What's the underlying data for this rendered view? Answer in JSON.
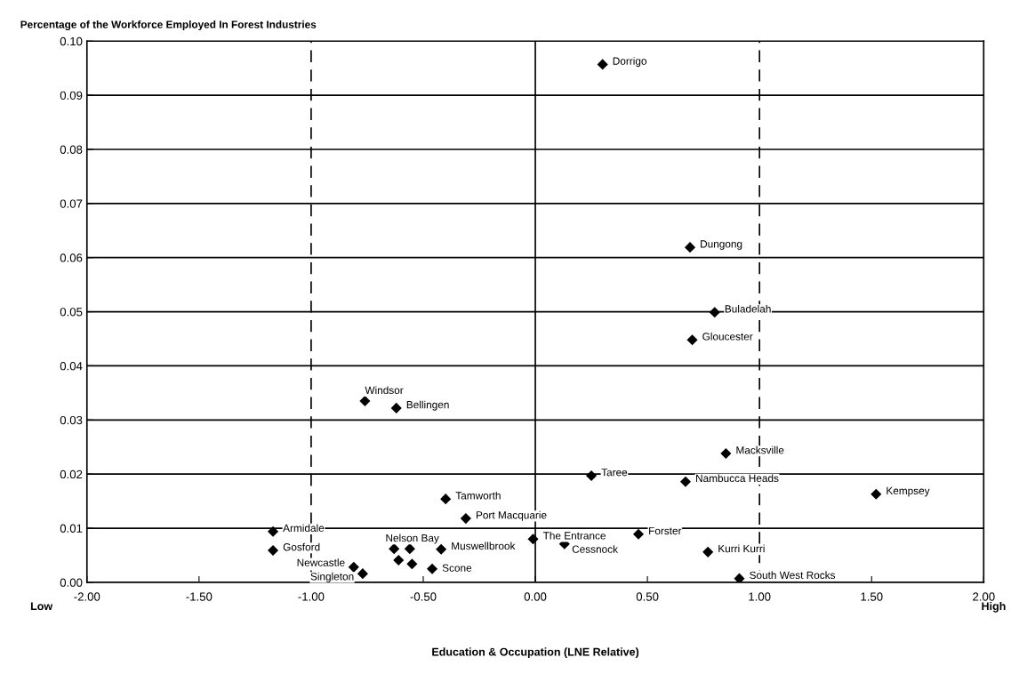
{
  "chart_data": {
    "type": "scatter",
    "title": "Percentage of the Workforce Employed In Forest Industries",
    "xlabel": "Education & Occupation (LNE Relative)",
    "x": [
      0.3,
      0.69,
      0.8,
      0.7,
      -0.76,
      -0.62,
      0.85,
      0.25,
      0.67,
      1.52,
      -0.4,
      -0.31,
      -1.17,
      -1.17,
      -0.63,
      -0.56,
      -0.61,
      -0.55,
      -0.42,
      -0.46,
      -0.81,
      -0.77,
      -0.01,
      0.13,
      0.46,
      0.77,
      0.91
    ],
    "values": [
      0.0957,
      0.0619,
      0.0499,
      0.0448,
      0.0335,
      0.0322,
      0.0238,
      0.0197,
      0.0186,
      0.0163,
      0.0154,
      0.0118,
      0.0094,
      0.0059,
      0.0062,
      0.0062,
      0.0041,
      0.0034,
      0.0061,
      0.0025,
      0.0028,
      0.0016,
      0.008,
      0.0071,
      0.0089,
      0.0056,
      0.0007
    ],
    "color": "#000000",
    "marker": "diamond",
    "xlim": [
      -2,
      2
    ],
    "xticks": [
      {
        "value": -2,
        "label": "-2.00"
      },
      {
        "value": -1.5,
        "label": "-1.50"
      },
      {
        "value": -1,
        "label": "-1.00"
      },
      {
        "value": -0.5,
        "label": "-0.50"
      },
      {
        "value": 0,
        "label": "0.00"
      },
      {
        "value": 0.5,
        "label": "0.50"
      },
      {
        "value": 1,
        "label": "1.00"
      },
      {
        "value": 1.5,
        "label": "1.50"
      },
      {
        "value": 2,
        "label": "2.00"
      }
    ],
    "ylim": [
      0,
      0.1
    ],
    "yticks": [
      {
        "value": 0,
        "label": "0.00"
      },
      {
        "value": 0.01,
        "label": "0.01"
      },
      {
        "value": 0.02,
        "label": "0.02"
      },
      {
        "value": 0.03,
        "label": "0.03"
      },
      {
        "value": 0.04,
        "label": "0.04"
      },
      {
        "value": 0.05,
        "label": "0.05"
      },
      {
        "value": 0.06,
        "label": "0.06"
      },
      {
        "value": 0.07,
        "label": "0.07"
      },
      {
        "value": 0.08,
        "label": "0.08"
      },
      {
        "value": 0.09,
        "label": "0.09"
      },
      {
        "value": 0.1,
        "label": "0.10"
      }
    ],
    "grid": "y",
    "ref_lines": [
      {
        "axis": "x",
        "value": -1,
        "color": "#000000",
        "line_style": "dashed"
      },
      {
        "axis": "x",
        "value": 0,
        "color": "#000000",
        "line_style": "solid"
      },
      {
        "axis": "x",
        "value": 1,
        "color": "#000000",
        "line_style": "dashed"
      }
    ],
    "annotations": [
      {
        "text": "Dorrigo",
        "x": 0.3,
        "y": 0.0957
      },
      {
        "text": "Dungong",
        "x": 0.69,
        "y": 0.0619
      },
      {
        "text": "Buladelah",
        "x": 0.8,
        "y": 0.0499
      },
      {
        "text": "Gloucester",
        "x": 0.7,
        "y": 0.0448
      },
      {
        "text": "Windsor",
        "x": -0.76,
        "y": 0.0335
      },
      {
        "text": "Bellingen",
        "x": -0.62,
        "y": 0.0322
      },
      {
        "text": "Macksville",
        "x": 0.85,
        "y": 0.0238
      },
      {
        "text": "Taree",
        "x": 0.25,
        "y": 0.0197
      },
      {
        "text": "Nambucca Heads",
        "x": 0.67,
        "y": 0.0186
      },
      {
        "text": "Kempsey",
        "x": 1.52,
        "y": 0.0163
      },
      {
        "text": "Tamworth",
        "x": -0.4,
        "y": 0.0154
      },
      {
        "text": "Port Macquarie",
        "x": -0.31,
        "y": 0.0118
      },
      {
        "text": "Armidale",
        "x": -1.17,
        "y": 0.0094
      },
      {
        "text": "Gosford",
        "x": -1.17,
        "y": 0.0059
      },
      {
        "text": "Nelson Bay",
        "x": -0.63,
        "y": 0.0062
      },
      {
        "text": "Muswellbrook",
        "x": -0.42,
        "y": 0.0061
      },
      {
        "text": "Scone",
        "x": -0.46,
        "y": 0.0025
      },
      {
        "text": "Newcastle",
        "x": -0.81,
        "y": 0.0028
      },
      {
        "text": "Singleton",
        "x": -0.77,
        "y": 0.0016
      },
      {
        "text": "The Entrance",
        "x": -0.01,
        "y": 0.008
      },
      {
        "text": "Cessnock",
        "x": 0.13,
        "y": 0.0071
      },
      {
        "text": "Forster",
        "x": 0.46,
        "y": 0.0089
      },
      {
        "text": "Kurri Kurri",
        "x": 0.77,
        "y": 0.0056
      },
      {
        "text": "South West Rocks",
        "x": 0.91,
        "y": 0.0007
      },
      "Low",
      "High"
    ]
  }
}
